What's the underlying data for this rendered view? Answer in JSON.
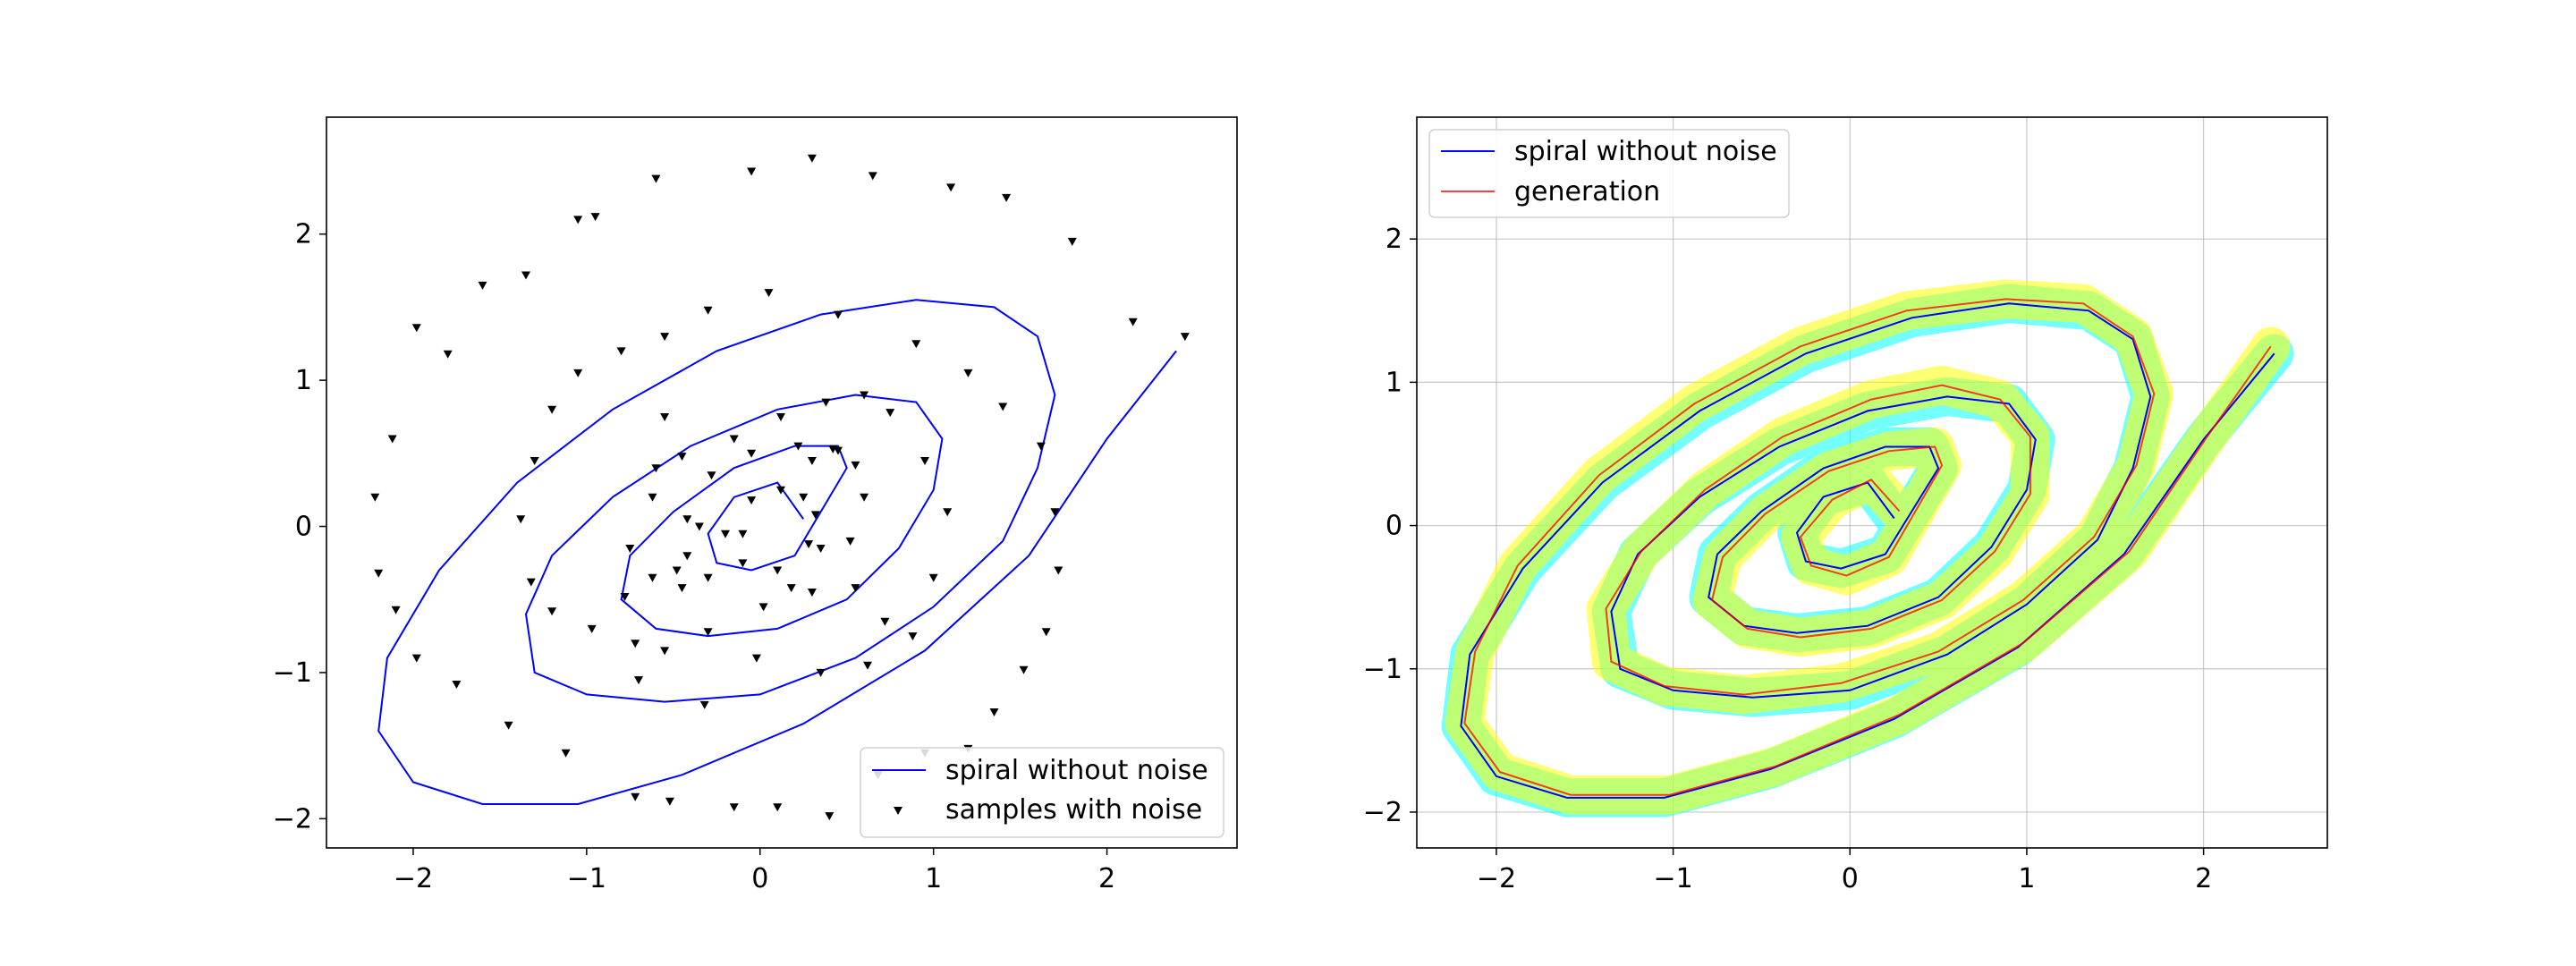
{
  "chart_data": [
    {
      "type": "scatter",
      "title": "",
      "xlabel": "",
      "ylabel": "",
      "xlim": [
        -2.5,
        2.75
      ],
      "ylim": [
        -2.2,
        2.8
      ],
      "xticks": [
        -2,
        -1,
        0,
        1,
        2
      ],
      "yticks": [
        -2,
        -1,
        0,
        1,
        2
      ],
      "xtick_labels": [
        "−2",
        "−1",
        "0",
        "1",
        "2"
      ],
      "ytick_labels": [
        "−2",
        "−1",
        "0",
        "1",
        "2"
      ],
      "grid": false,
      "legend_position": "lower-right",
      "legend": [
        "spiral without noise",
        "samples with noise"
      ],
      "series": [
        {
          "name": "spiral without noise",
          "kind": "line",
          "color": "#0000ff",
          "x": [
            0.25,
            0.1,
            -0.15,
            -0.3,
            -0.25,
            -0.05,
            0.2,
            0.35,
            0.5,
            0.45,
            0.2,
            -0.15,
            -0.5,
            -0.75,
            -0.8,
            -0.6,
            -0.3,
            0.1,
            0.5,
            0.8,
            1.0,
            1.05,
            0.9,
            0.55,
            0.1,
            -0.4,
            -0.85,
            -1.2,
            -1.35,
            -1.3,
            -1.0,
            -0.55,
            0.0,
            0.55,
            1.0,
            1.4,
            1.6,
            1.7,
            1.6,
            1.35,
            0.9,
            0.35,
            -0.25,
            -0.85,
            -1.4,
            -1.85,
            -2.15,
            -2.2,
            -2.0,
            -1.6,
            -1.05,
            -0.45,
            0.25,
            0.95,
            1.55,
            2.0,
            2.4
          ],
          "y": [
            0.05,
            0.3,
            0.2,
            -0.05,
            -0.25,
            -0.3,
            -0.2,
            0.1,
            0.4,
            0.55,
            0.55,
            0.4,
            0.1,
            -0.2,
            -0.5,
            -0.7,
            -0.75,
            -0.7,
            -0.5,
            -0.15,
            0.25,
            0.6,
            0.85,
            0.9,
            0.8,
            0.55,
            0.2,
            -0.2,
            -0.6,
            -1.0,
            -1.15,
            -1.2,
            -1.15,
            -0.9,
            -0.55,
            -0.1,
            0.4,
            0.9,
            1.3,
            1.5,
            1.55,
            1.45,
            1.2,
            0.8,
            0.3,
            -0.3,
            -0.9,
            -1.4,
            -1.75,
            -1.9,
            -1.9,
            -1.7,
            -1.35,
            -0.85,
            -0.2,
            0.6,
            1.2
          ]
        },
        {
          "name": "samples with noise",
          "kind": "scatter",
          "marker": "triangle-down",
          "color": "#000000",
          "x": [
            2.45,
            2.15,
            1.8,
            1.42,
            1.1,
            0.65,
            0.3,
            -0.05,
            -0.6,
            -0.95,
            -1.05,
            -1.35,
            -1.6,
            -1.8,
            -1.98,
            -2.12,
            -2.22,
            -2.2,
            -2.1,
            -1.98,
            -1.75,
            -1.45,
            -1.12,
            -0.72,
            -0.52,
            -0.15,
            0.1,
            0.4,
            0.68,
            0.95,
            1.2,
            1.35,
            1.52,
            1.65,
            1.72,
            1.7,
            1.62,
            1.4,
            1.2,
            0.9,
            0.45,
            0.05,
            -0.3,
            -0.55,
            -0.8,
            -1.05,
            -1.2,
            -1.3,
            -1.38,
            -1.32,
            -1.2,
            -0.97,
            -0.7,
            -0.32,
            -0.02,
            0.35,
            0.62,
            0.88,
            1.0,
            1.08,
            0.95,
            0.75,
            0.6,
            0.38,
            0.12,
            -0.15,
            -0.45,
            -0.62,
            -0.75,
            -0.78,
            -0.72,
            -0.55,
            -0.3,
            0.02,
            0.3,
            0.52,
            0.6,
            0.55,
            0.42,
            0.22,
            -0.05,
            -0.28,
            -0.42,
            -0.48,
            -0.45,
            -0.3,
            -0.1,
            0.1,
            0.28,
            0.32,
            0.25,
            0.12,
            -0.05,
            -0.2,
            -0.35,
            0.35,
            0.45,
            0.3,
            -0.55,
            0.55,
            -0.1,
            -0.42,
            -0.6,
            0.72,
            -0.62,
            0.18
          ],
          "y": [
            1.3,
            1.4,
            1.95,
            2.25,
            2.32,
            2.4,
            2.52,
            2.43,
            2.38,
            2.12,
            2.1,
            1.72,
            1.65,
            1.18,
            1.36,
            0.6,
            0.2,
            -0.32,
            -0.57,
            -0.9,
            -1.08,
            -1.36,
            -1.55,
            -1.85,
            -1.88,
            -1.92,
            -1.92,
            -1.98,
            -1.7,
            -1.55,
            -1.52,
            -1.27,
            -0.98,
            -0.72,
            -0.3,
            0.1,
            0.55,
            0.82,
            1.05,
            1.25,
            1.45,
            1.6,
            1.48,
            1.3,
            1.2,
            1.05,
            0.8,
            0.45,
            0.05,
            -0.38,
            -0.58,
            -0.7,
            -1.05,
            -1.22,
            -0.9,
            -1.0,
            -0.95,
            -0.75,
            -0.35,
            0.1,
            0.45,
            0.78,
            0.9,
            0.85,
            0.75,
            0.6,
            0.48,
            0.2,
            -0.15,
            -0.48,
            -0.8,
            -0.85,
            -0.72,
            -0.55,
            -0.45,
            -0.1,
            0.2,
            0.42,
            0.53,
            0.55,
            0.5,
            0.35,
            0.05,
            -0.3,
            -0.42,
            -0.35,
            -0.25,
            -0.3,
            -0.12,
            0.08,
            0.2,
            0.25,
            0.18,
            -0.05,
            0.0,
            -0.15,
            0.52,
            0.45,
            0.75,
            -0.42,
            -0.05,
            -0.2,
            0.4,
            -0.65,
            -0.35,
            -0.42
          ]
        }
      ]
    },
    {
      "type": "line",
      "title": "",
      "xlabel": "",
      "ylabel": "",
      "xlim": [
        -2.45,
        2.7
      ],
      "ylim": [
        -2.25,
        2.85
      ],
      "xticks": [
        -2,
        -1,
        0,
        1,
        2
      ],
      "yticks": [
        -2,
        -1,
        0,
        1,
        2
      ],
      "xtick_labels": [
        "−2",
        "−1",
        "0",
        "1",
        "2"
      ],
      "ytick_labels": [
        "−2",
        "−1",
        "0",
        "1",
        "2"
      ],
      "grid": true,
      "legend_position": "upper-left",
      "legend": [
        "spiral without noise",
        "generation"
      ],
      "series": [
        {
          "name": "spiral without noise",
          "kind": "line",
          "color": "#0000ff"
        },
        {
          "name": "generation",
          "kind": "line",
          "color": "#ff0000",
          "x": [
            0.28,
            0.12,
            -0.1,
            -0.28,
            -0.22,
            -0.02,
            0.22,
            0.38,
            0.52,
            0.48,
            0.22,
            -0.12,
            -0.48,
            -0.72,
            -0.78,
            -0.58,
            -0.28,
            0.12,
            0.52,
            0.82,
            1.02,
            1.02,
            0.85,
            0.52,
            0.12,
            -0.38,
            -0.82,
            -1.18,
            -1.38,
            -1.35,
            -1.05,
            -0.6,
            -0.05,
            0.5,
            0.98,
            1.38,
            1.62,
            1.72,
            1.6,
            1.32,
            0.88,
            0.32,
            -0.28,
            -0.88,
            -1.42,
            -1.88,
            -2.12,
            -2.18,
            -1.98,
            -1.58,
            -1.02,
            -0.42,
            0.28,
            0.98,
            1.58,
            2.02,
            2.38
          ],
          "y": [
            0.1,
            0.32,
            0.18,
            -0.08,
            -0.28,
            -0.35,
            -0.22,
            0.12,
            0.42,
            0.55,
            0.52,
            0.38,
            0.08,
            -0.22,
            -0.52,
            -0.72,
            -0.78,
            -0.72,
            -0.52,
            -0.18,
            0.22,
            0.62,
            0.88,
            0.98,
            0.88,
            0.62,
            0.25,
            -0.18,
            -0.58,
            -0.95,
            -1.12,
            -1.18,
            -1.1,
            -0.88,
            -0.52,
            -0.08,
            0.42,
            0.92,
            1.32,
            1.55,
            1.58,
            1.5,
            1.25,
            0.85,
            0.35,
            -0.28,
            -0.88,
            -1.38,
            -1.72,
            -1.88,
            -1.88,
            -1.68,
            -1.32,
            -0.82,
            -0.18,
            0.62,
            1.25
          ]
        }
      ],
      "bands": [
        {
          "color": "#00ffff",
          "alpha": 0.55,
          "width_units": 0.22
        },
        {
          "color": "#ffff00",
          "alpha": 0.55,
          "width_units": 0.22
        }
      ]
    }
  ]
}
